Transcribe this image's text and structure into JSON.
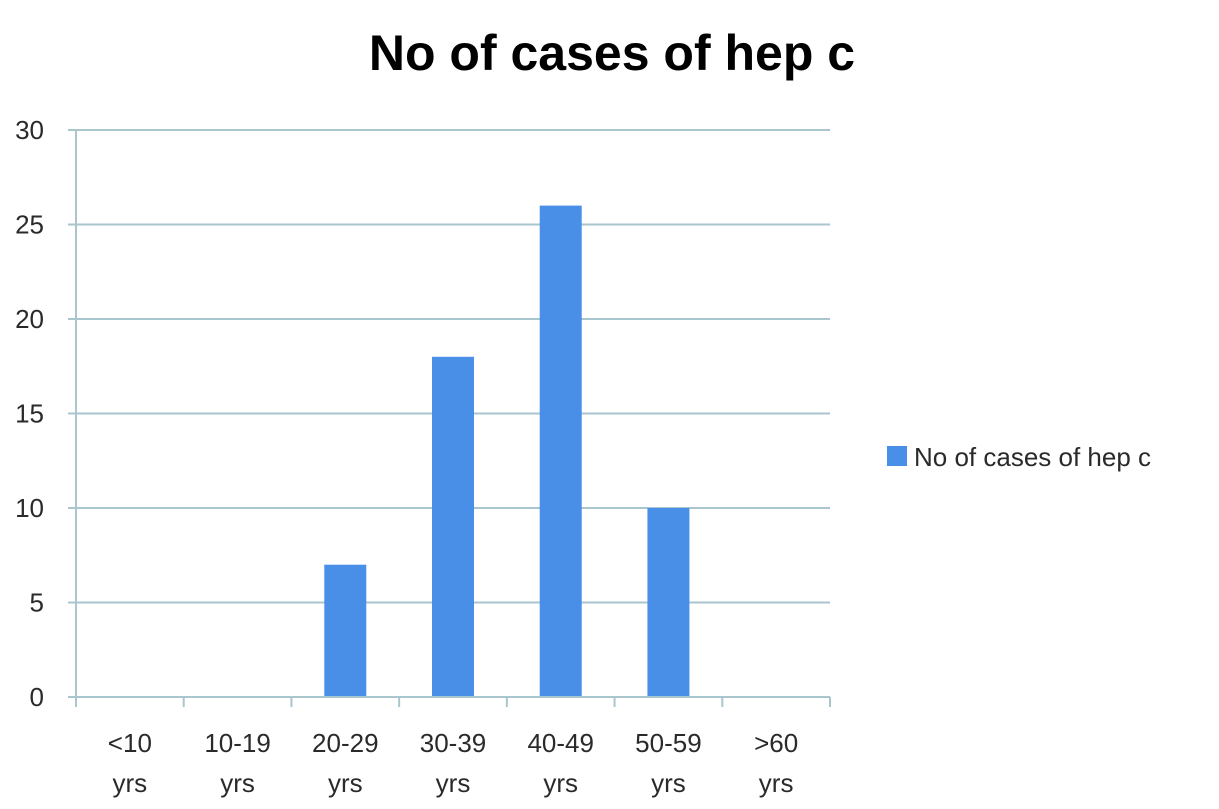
{
  "chart_data": {
    "type": "bar",
    "title": "No  of cases of hep c",
    "categories": [
      [
        "<10",
        "yrs"
      ],
      [
        "10-19",
        "yrs"
      ],
      [
        "20-29",
        "yrs"
      ],
      [
        "30-39",
        "yrs"
      ],
      [
        "40-49",
        "yrs"
      ],
      [
        "50-59",
        "yrs"
      ],
      [
        ">60",
        "yrs"
      ]
    ],
    "series": [
      {
        "name": "No  of cases of hep c",
        "values": [
          0,
          0,
          7,
          18,
          26,
          10,
          0
        ],
        "color": "#4a8fe7"
      }
    ],
    "ylim": [
      0,
      30
    ],
    "yticks": [
      0,
      5,
      10,
      15,
      20,
      25,
      30
    ],
    "grid": true,
    "legend": "right"
  }
}
